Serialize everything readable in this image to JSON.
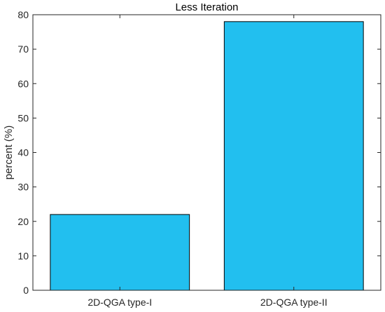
{
  "chart_data": {
    "type": "bar",
    "title": "Less Iteration",
    "xlabel": "",
    "ylabel": "percent (%)",
    "categories": [
      "2D-QGA type-I",
      "2D-QGA type-II"
    ],
    "values": [
      22,
      78
    ],
    "ylim": [
      0,
      80
    ],
    "yticks": [
      "0",
      "10",
      "20",
      "30",
      "40",
      "50",
      "60",
      "70",
      "80"
    ],
    "grid": false,
    "bar_color": "#22bfef"
  }
}
